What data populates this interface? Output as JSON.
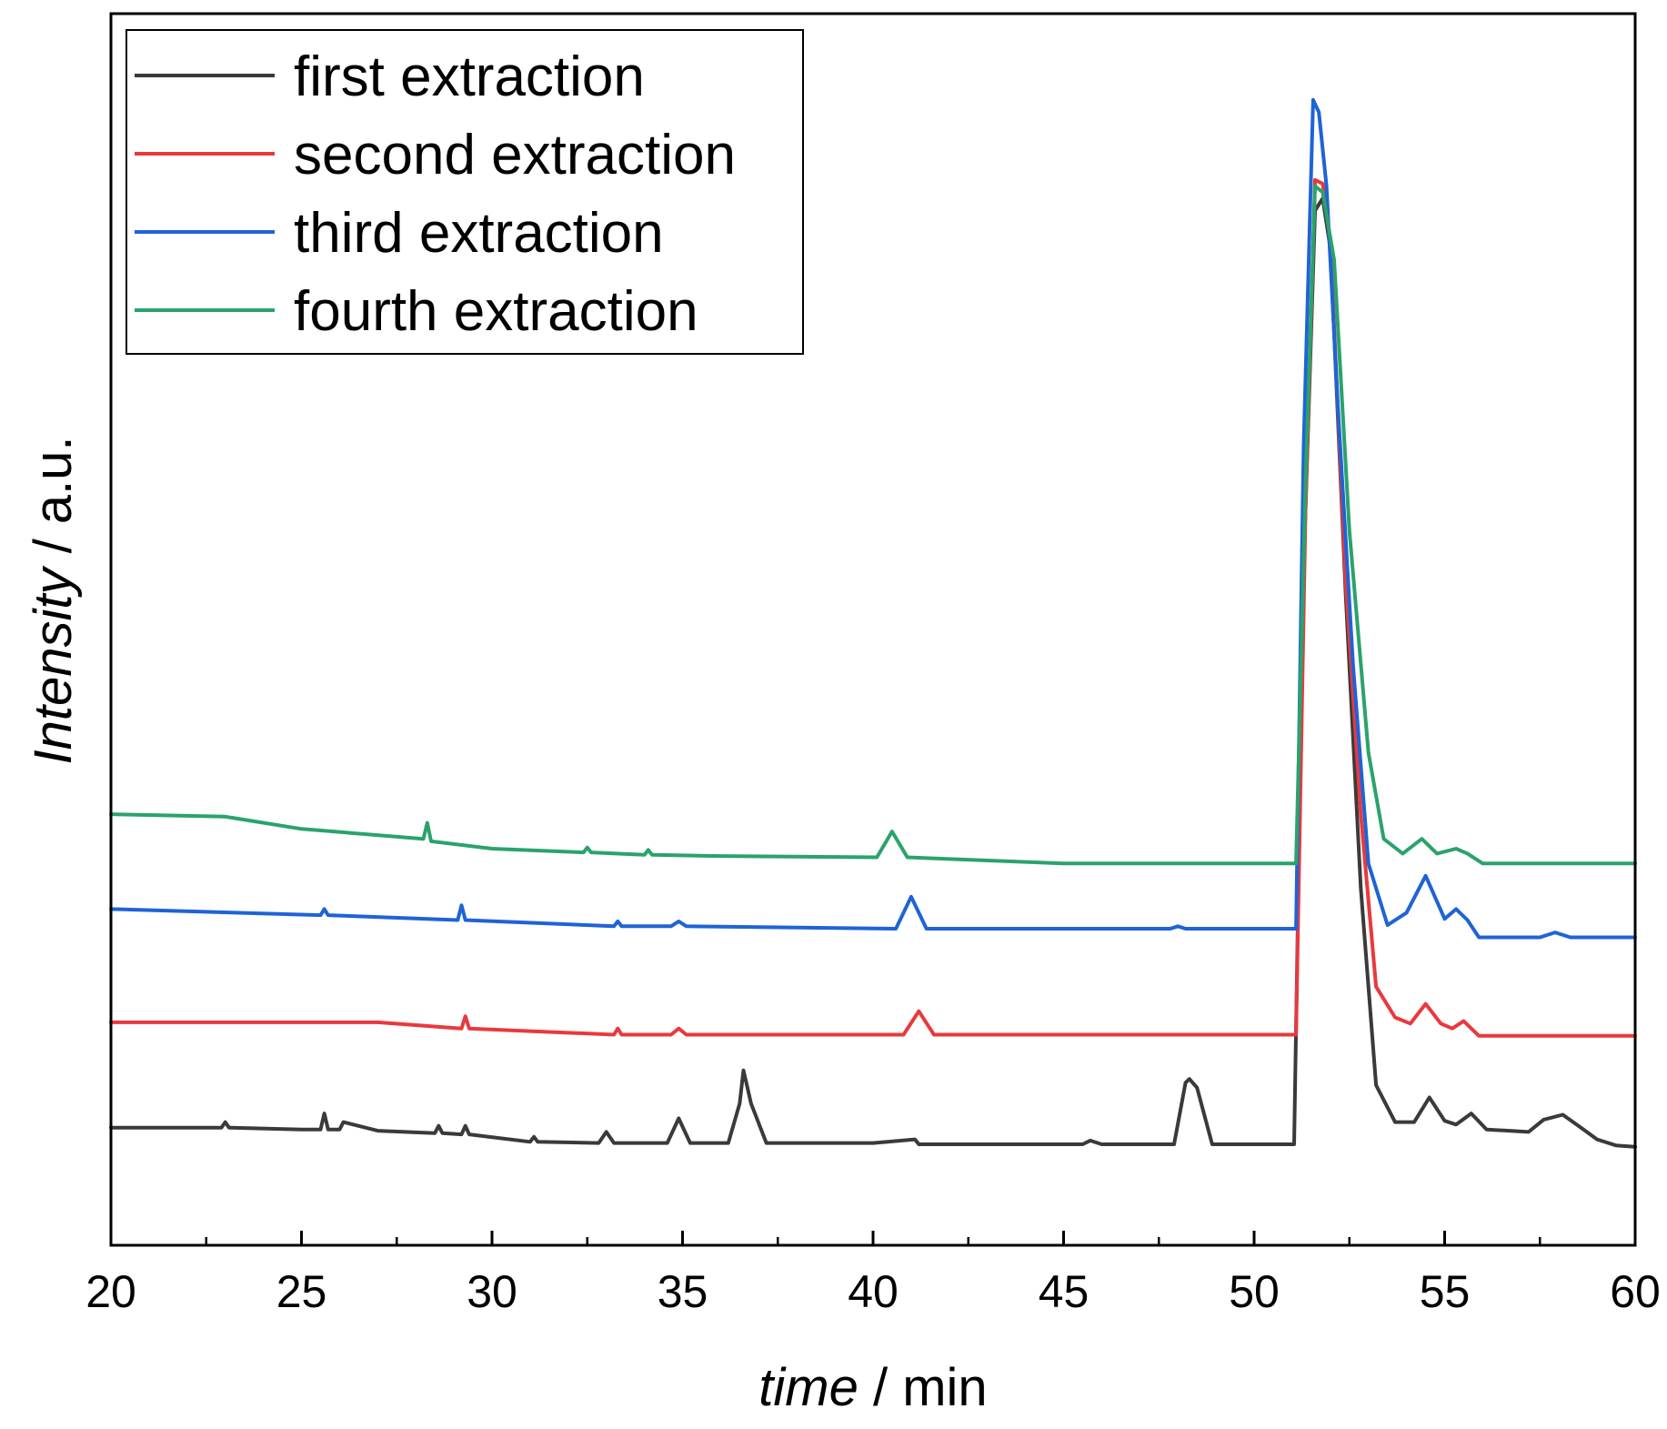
{
  "chart_data": {
    "type": "line",
    "title": "",
    "xlabel": {
      "italic": "time",
      "rest": " / min"
    },
    "ylabel": {
      "italic": "Intensity",
      "rest": " / a.u."
    },
    "xlim": [
      20,
      60
    ],
    "ylim": [
      0,
      1.0
    ],
    "xticks": [
      20,
      25,
      30,
      35,
      40,
      45,
      50,
      55,
      60
    ],
    "xtick_labels": [
      "20",
      "25",
      "30",
      "35",
      "40",
      "45",
      "50",
      "55",
      "60"
    ],
    "minor_xticks": [
      22.5,
      27.5,
      32.5,
      37.5,
      42.5,
      47.5,
      52.5,
      57.5
    ],
    "yticks_shown": false,
    "grid": false,
    "legend_position": "top-left",
    "series": [
      {
        "name": "first extraction",
        "color": "#3a3a3a",
        "x": [
          20,
          22.9,
          23,
          23.1,
          25,
          25.5,
          25.6,
          25.7,
          26,
          26.1,
          27,
          28.5,
          28.6,
          28.7,
          29.2,
          29.3,
          29.4,
          31,
          31.1,
          31.2,
          32.8,
          33,
          33.2,
          34.6,
          34.9,
          35.2,
          36.2,
          36.5,
          36.6,
          36.8,
          37.2,
          40,
          41.1,
          41.2,
          45.5,
          45.7,
          46,
          47.9,
          48.2,
          48.3,
          48.5,
          48.9,
          50.9,
          51.05,
          51.3,
          51.6,
          51.8,
          52.0,
          52.4,
          52.8,
          53.2,
          53.7,
          54.2,
          54.6,
          55.0,
          55.3,
          55.7,
          56.1,
          57.2,
          57.6,
          58.1,
          58.6,
          59.0,
          59.5,
          60
        ],
        "y": [
          0.0955,
          0.0955,
          0.1,
          0.0955,
          0.094,
          0.094,
          0.107,
          0.094,
          0.094,
          0.1,
          0.093,
          0.091,
          0.097,
          0.091,
          0.09,
          0.097,
          0.09,
          0.084,
          0.088,
          0.084,
          0.083,
          0.092,
          0.083,
          0.083,
          0.103,
          0.083,
          0.083,
          0.115,
          0.142,
          0.115,
          0.083,
          0.083,
          0.086,
          0.082,
          0.082,
          0.085,
          0.082,
          0.082,
          0.132,
          0.135,
          0.128,
          0.082,
          0.082,
          0.082,
          0.55,
          0.84,
          0.85,
          0.81,
          0.53,
          0.29,
          0.13,
          0.1,
          0.1,
          0.12,
          0.101,
          0.098,
          0.107,
          0.094,
          0.092,
          0.102,
          0.106,
          0.095,
          0.086,
          0.081,
          0.08
        ]
      },
      {
        "name": "second extraction",
        "color": "#e8393e",
        "x": [
          20,
          27,
          29.2,
          29.3,
          29.4,
          33.2,
          33.3,
          33.4,
          34.7,
          34.9,
          35.1,
          40.8,
          41.2,
          41.6,
          50.95,
          51.1,
          51.35,
          51.6,
          51.8,
          52.0,
          52.4,
          52.8,
          53.2,
          53.7,
          54.1,
          54.5,
          54.9,
          55.2,
          55.5,
          55.9,
          57.5,
          60
        ],
        "y": [
          0.181,
          0.181,
          0.176,
          0.186,
          0.176,
          0.171,
          0.176,
          0.171,
          0.171,
          0.176,
          0.171,
          0.171,
          0.19,
          0.171,
          0.171,
          0.171,
          0.6,
          0.865,
          0.862,
          0.815,
          0.54,
          0.35,
          0.21,
          0.185,
          0.18,
          0.196,
          0.18,
          0.176,
          0.182,
          0.17,
          0.17,
          0.17
        ]
      },
      {
        "name": "third extraction",
        "color": "#1f63d6",
        "x": [
          20,
          25.5,
          25.6,
          25.7,
          29.1,
          29.2,
          29.3,
          33.2,
          33.3,
          33.4,
          34.7,
          34.9,
          35.1,
          40.6,
          41.0,
          41.4,
          47.8,
          48.0,
          48.2,
          50.95,
          51.1,
          51.3,
          51.55,
          51.7,
          51.9,
          52.2,
          52.6,
          53.0,
          53.5,
          54.0,
          54.5,
          55.0,
          55.3,
          55.6,
          55.9,
          57.5,
          57.9,
          58.3,
          60
        ],
        "y": [
          0.273,
          0.268,
          0.273,
          0.268,
          0.264,
          0.276,
          0.264,
          0.259,
          0.263,
          0.259,
          0.259,
          0.263,
          0.259,
          0.257,
          0.283,
          0.257,
          0.257,
          0.259,
          0.257,
          0.257,
          0.257,
          0.65,
          0.93,
          0.92,
          0.86,
          0.68,
          0.47,
          0.31,
          0.26,
          0.27,
          0.3,
          0.265,
          0.273,
          0.264,
          0.25,
          0.25,
          0.254,
          0.25,
          0.25
        ]
      },
      {
        "name": "fourth extraction",
        "color": "#2aa36b",
        "x": [
          20,
          23,
          25,
          28.2,
          28.3,
          28.4,
          30,
          32.4,
          32.5,
          32.6,
          34.0,
          34.1,
          34.2,
          36,
          40.1,
          40.5,
          40.9,
          45,
          50.95,
          51.1,
          51.35,
          51.6,
          51.8,
          52.1,
          52.5,
          53.0,
          53.4,
          53.9,
          54.4,
          54.8,
          55.3,
          55.6,
          56.0,
          57,
          60
        ],
        "y": [
          0.35,
          0.348,
          0.338,
          0.33,
          0.343,
          0.328,
          0.322,
          0.319,
          0.323,
          0.319,
          0.317,
          0.321,
          0.317,
          0.316,
          0.315,
          0.336,
          0.315,
          0.31,
          0.31,
          0.31,
          0.62,
          0.86,
          0.855,
          0.8,
          0.58,
          0.4,
          0.33,
          0.318,
          0.33,
          0.318,
          0.322,
          0.318,
          0.31,
          0.31,
          0.31
        ]
      }
    ]
  }
}
